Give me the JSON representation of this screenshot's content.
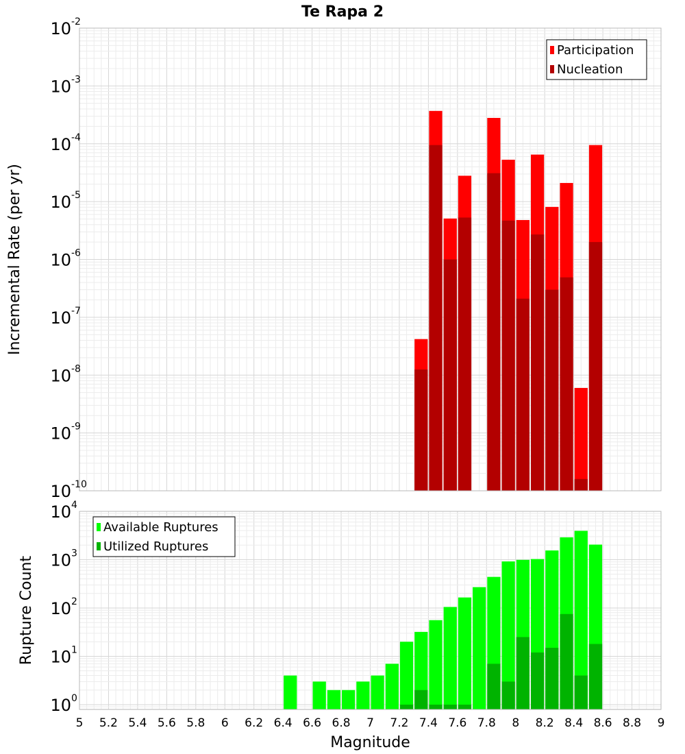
{
  "chart_data": [
    {
      "type": "bar",
      "panel": "top",
      "title": "Te Rapa 2",
      "ylabel": "Incremental Rate (per yr)",
      "yscale": "log",
      "ylim_exp": [
        -10,
        -2
      ],
      "y_tick_base": "10",
      "y_ticks": [
        {
          "exp": -2,
          "label": "-2"
        },
        {
          "exp": -3,
          "label": "-3"
        },
        {
          "exp": -4,
          "label": "-4"
        },
        {
          "exp": -5,
          "label": "-5"
        },
        {
          "exp": -6,
          "label": "-6"
        },
        {
          "exp": -7,
          "label": "-7"
        },
        {
          "exp": -8,
          "label": "-8"
        },
        {
          "exp": -9,
          "label": "-9"
        },
        {
          "exp": -10,
          "label": "-10"
        }
      ],
      "xlim": [
        5,
        9
      ],
      "bin_width": 0.1,
      "grid": true,
      "legend_position": "top-right",
      "series": [
        {
          "name": "Participation",
          "color": "#ff0000",
          "points": [
            {
              "x": 7.35,
              "y": 4.2e-08
            },
            {
              "x": 7.45,
              "y": 0.00037
            },
            {
              "x": 7.55,
              "y": 5.1e-06
            },
            {
              "x": 7.65,
              "y": 2.8e-05
            },
            {
              "x": 7.85,
              "y": 0.00028
            },
            {
              "x": 7.95,
              "y": 5.3e-05
            },
            {
              "x": 8.05,
              "y": 4.8e-06
            },
            {
              "x": 8.15,
              "y": 6.5e-05
            },
            {
              "x": 8.25,
              "y": 8.1e-06
            },
            {
              "x": 8.35,
              "y": 2.1e-05
            },
            {
              "x": 8.45,
              "y": 6e-09
            },
            {
              "x": 8.55,
              "y": 9.5e-05
            }
          ]
        },
        {
          "name": "Nucleation",
          "color": "#b30000",
          "points": [
            {
              "x": 7.35,
              "y": 1.25e-08
            },
            {
              "x": 7.45,
              "y": 9.5e-05
            },
            {
              "x": 7.55,
              "y": 1e-06
            },
            {
              "x": 7.65,
              "y": 5.3e-06
            },
            {
              "x": 7.85,
              "y": 3.1e-05
            },
            {
              "x": 7.95,
              "y": 4.7e-06
            },
            {
              "x": 8.05,
              "y": 2.1e-07
            },
            {
              "x": 8.15,
              "y": 2.7e-06
            },
            {
              "x": 8.25,
              "y": 3e-07
            },
            {
              "x": 8.35,
              "y": 4.9e-07
            },
            {
              "x": 8.45,
              "y": 1.6e-10
            },
            {
              "x": 8.55,
              "y": 2e-06
            }
          ]
        }
      ]
    },
    {
      "type": "bar",
      "panel": "bottom",
      "xlabel": "Magnitude",
      "ylabel": "Rupture Count",
      "yscale": "log",
      "ylim_exp": [
        -0.1,
        4
      ],
      "y_tick_base": "10",
      "y_ticks": [
        {
          "exp": 0,
          "label": "0"
        },
        {
          "exp": 1,
          "label": "1"
        },
        {
          "exp": 2,
          "label": "2"
        },
        {
          "exp": 3,
          "label": "3"
        },
        {
          "exp": 4,
          "label": "4"
        }
      ],
      "xlim": [
        5,
        9
      ],
      "x_ticks": [
        "5",
        "5.2",
        "5.4",
        "5.6",
        "5.8",
        "6",
        "6.2",
        "6.4",
        "6.6",
        "6.8",
        "7",
        "7.2",
        "7.4",
        "7.6",
        "7.8",
        "8",
        "8.2",
        "8.4",
        "8.6",
        "8.8",
        "9"
      ],
      "bin_width": 0.1,
      "grid": true,
      "legend_position": "top-left",
      "series": [
        {
          "name": "Available Ruptures",
          "color": "#00ff00",
          "points": [
            {
              "x": 6.45,
              "y": 4
            },
            {
              "x": 6.65,
              "y": 3
            },
            {
              "x": 6.75,
              "y": 2
            },
            {
              "x": 6.85,
              "y": 2
            },
            {
              "x": 6.95,
              "y": 3
            },
            {
              "x": 7.05,
              "y": 4
            },
            {
              "x": 7.15,
              "y": 7
            },
            {
              "x": 7.25,
              "y": 20
            },
            {
              "x": 7.35,
              "y": 32
            },
            {
              "x": 7.45,
              "y": 56
            },
            {
              "x": 7.55,
              "y": 105
            },
            {
              "x": 7.65,
              "y": 165
            },
            {
              "x": 7.75,
              "y": 270
            },
            {
              "x": 7.85,
              "y": 440
            },
            {
              "x": 7.95,
              "y": 920
            },
            {
              "x": 8.05,
              "y": 990
            },
            {
              "x": 8.15,
              "y": 1030
            },
            {
              "x": 8.25,
              "y": 1550
            },
            {
              "x": 8.35,
              "y": 2900
            },
            {
              "x": 8.45,
              "y": 3950
            },
            {
              "x": 8.55,
              "y": 2050
            }
          ]
        },
        {
          "name": "Utilized Ruptures",
          "color": "#00b300",
          "points": [
            {
              "x": 7.25,
              "y": 1
            },
            {
              "x": 7.35,
              "y": 2
            },
            {
              "x": 7.45,
              "y": 1
            },
            {
              "x": 7.55,
              "y": 1
            },
            {
              "x": 7.65,
              "y": 1
            },
            {
              "x": 7.85,
              "y": 7
            },
            {
              "x": 7.95,
              "y": 3
            },
            {
              "x": 8.05,
              "y": 25
            },
            {
              "x": 8.15,
              "y": 12
            },
            {
              "x": 8.25,
              "y": 15
            },
            {
              "x": 8.35,
              "y": 75
            },
            {
              "x": 8.45,
              "y": 4
            },
            {
              "x": 8.55,
              "y": 18
            }
          ]
        }
      ]
    }
  ]
}
